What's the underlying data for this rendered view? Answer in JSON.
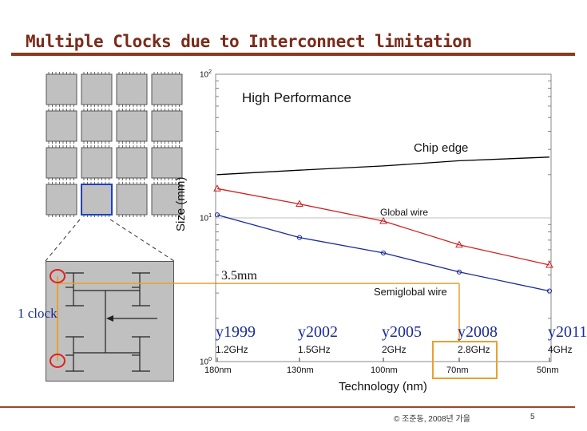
{
  "slide": {
    "title": "Multiple Clocks due to  Interconnect limitation",
    "footer": "© 조준동, 2008년 가을",
    "page_number": "5"
  },
  "left_diagram": {
    "clock_label": "1 clock",
    "dimension_label": "3.5mm"
  },
  "chart_data": {
    "type": "line",
    "title": "High Performance",
    "xlabel": "Technology (nm)",
    "ylabel": "Size (mm)",
    "y_scale": "log",
    "ylim": [
      1,
      100
    ],
    "y_ticks": [
      {
        "base": "10",
        "exp": "2",
        "value": 100
      },
      {
        "base": "10",
        "exp": "1",
        "value": 10
      },
      {
        "base": "10",
        "exp": "0",
        "value": 1
      }
    ],
    "categories": [
      "180nm",
      "130nm",
      "100nm",
      "70nm",
      "50nm"
    ],
    "years": [
      "y1999",
      "y2002",
      "y2005",
      "y2008",
      "y2011"
    ],
    "frequencies": [
      "1.2GHz",
      "1.5GHz",
      "2GHz",
      "2.8GHz",
      "4GHz"
    ],
    "series": [
      {
        "name": "Chip edge",
        "color": "#000000",
        "values": [
          20,
          21.5,
          23,
          25,
          26.5
        ]
      },
      {
        "name": "Global wire",
        "color": "#cc2222",
        "values": [
          16,
          12.5,
          9.5,
          6.5,
          4.7
        ]
      },
      {
        "name": "Semiglobal wire",
        "color": "#1a2b99",
        "values": [
          10.5,
          7.3,
          5.7,
          4.2,
          3.1
        ]
      }
    ],
    "highlight": {
      "category": "70nm",
      "size_mm": 3.5,
      "color": "#e8a030"
    }
  }
}
